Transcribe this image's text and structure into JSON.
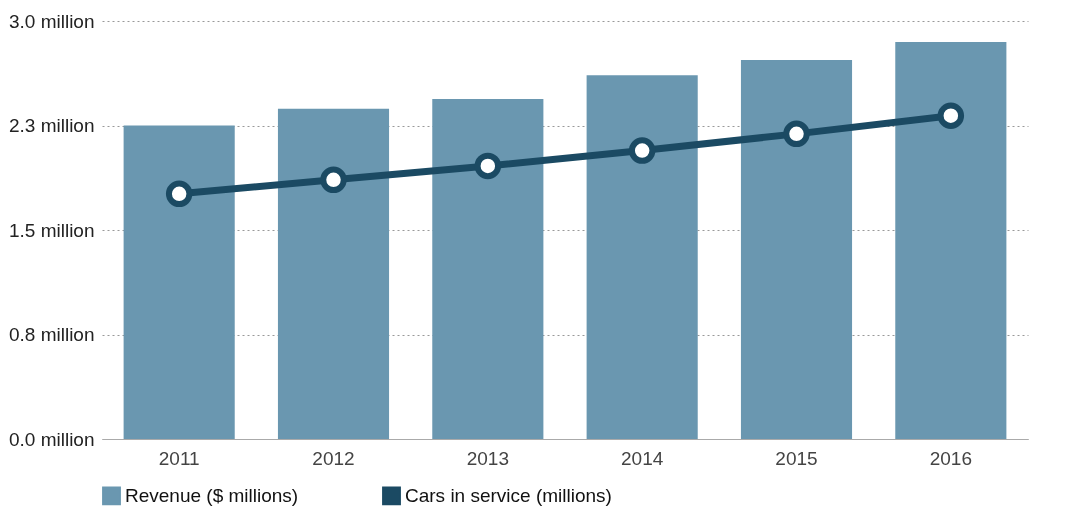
{
  "chart_data": {
    "type": "bar",
    "categories": [
      "2011",
      "2012",
      "2013",
      "2014",
      "2015",
      "2016"
    ],
    "series": [
      {
        "name": "Revenue ($ millions)",
        "color": "#6a97b0",
        "values": [
          2.25,
          2.37,
          2.44,
          2.61,
          2.72,
          2.85
        ]
      },
      {
        "name": "Cars in service (millions)",
        "type": "line",
        "color": "#1b4a63",
        "values": [
          1.76,
          1.86,
          1.96,
          2.07,
          2.19,
          2.32
        ]
      }
    ],
    "ylim": [
      0,
      3.0
    ],
    "yticks": [
      {
        "value": 0,
        "label": "0.0 million"
      },
      {
        "value": 0.75,
        "label": "0.8 million"
      },
      {
        "value": 1.5,
        "label": "1.5 million"
      },
      {
        "value": 2.25,
        "label": "2.3 million"
      },
      {
        "value": 3.0,
        "label": "3.0 million"
      }
    ],
    "grid": "y",
    "legend": "bottom",
    "marker": "circle",
    "line_style": "solid"
  }
}
